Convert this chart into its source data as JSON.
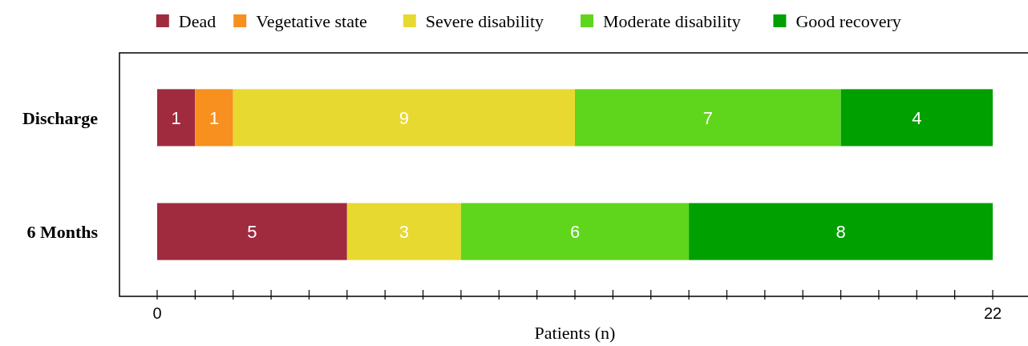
{
  "chart_data": {
    "type": "bar",
    "orientation": "horizontal",
    "stacked": true,
    "xlabel": "Patients (n)",
    "categories": [
      "Discharge",
      "6 Months"
    ],
    "series": [
      {
        "name": "Dead",
        "color": "#a02b3f",
        "values": [
          1,
          5
        ],
        "value_labels": [
          "1",
          "5"
        ]
      },
      {
        "name": "Vegetative state",
        "color": "#f7901e",
        "values": [
          1,
          0
        ],
        "value_labels": [
          "1",
          null
        ]
      },
      {
        "name": "Severe disability",
        "color": "#e8d930",
        "values": [
          9,
          3
        ],
        "value_labels": [
          "9",
          "3"
        ]
      },
      {
        "name": "Moderate disability",
        "color": "#5fd61c",
        "values": [
          7,
          6
        ],
        "value_labels": [
          "7",
          "6"
        ]
      },
      {
        "name": "Good recovery",
        "color": "#00a000",
        "values": [
          4,
          8
        ],
        "value_labels": [
          "4",
          "8"
        ]
      }
    ],
    "xlim": [
      0,
      22
    ],
    "xticks": [
      0,
      {
        "value": 1,
        "label": null
      },
      {
        "value": 2,
        "label": null
      },
      {
        "value": 3,
        "label": null
      },
      {
        "value": 4,
        "label": null
      },
      {
        "value": 5,
        "label": null
      },
      {
        "value": 6,
        "label": null
      },
      {
        "value": 7,
        "label": null
      },
      {
        "value": 8,
        "label": null
      },
      {
        "value": 9,
        "label": null
      },
      {
        "value": 10,
        "label": null
      },
      {
        "value": 11,
        "label": null
      },
      {
        "value": 12,
        "label": null
      },
      {
        "value": 13,
        "label": null
      },
      {
        "value": 14,
        "label": null
      },
      {
        "value": 15,
        "label": null
      },
      {
        "value": 16,
        "label": null
      },
      {
        "value": 17,
        "label": null
      },
      {
        "value": 18,
        "label": null
      },
      {
        "value": 19,
        "label": null
      },
      {
        "value": 20,
        "label": null
      },
      {
        "value": 21,
        "label": null
      },
      22
    ],
    "legend": "top",
    "grid": false
  }
}
